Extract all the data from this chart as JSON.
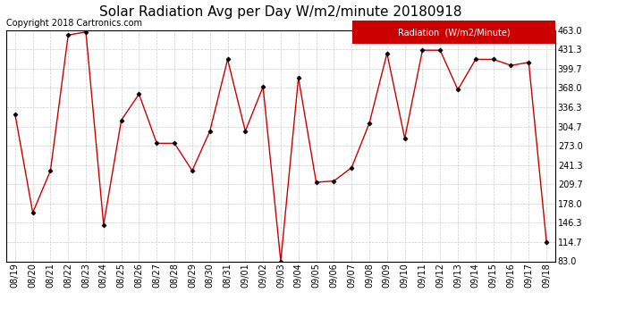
{
  "title": "Solar Radiation Avg per Day W/m2/minute 20180918",
  "copyright": "Copyright 2018 Cartronics.com",
  "legend_label": "Radiation  (W/m2/Minute)",
  "dates": [
    "08/19",
    "08/20",
    "08/21",
    "08/22",
    "08/23",
    "08/24",
    "08/25",
    "08/26",
    "08/27",
    "08/28",
    "08/29",
    "08/30",
    "08/31",
    "09/01",
    "09/02",
    "09/03",
    "09/04",
    "09/05",
    "09/06",
    "09/07",
    "09/08",
    "09/09",
    "09/10",
    "09/11",
    "09/12",
    "09/13",
    "09/14",
    "09/15",
    "09/16",
    "09/17",
    "09/18"
  ],
  "values": [
    325,
    163,
    232,
    455,
    460,
    143,
    315,
    358,
    277,
    277,
    232,
    297,
    415,
    297,
    370,
    83,
    385,
    213,
    215,
    237,
    310,
    425,
    285,
    430,
    430,
    365,
    415,
    415,
    405,
    410,
    115
  ],
  "line_color": "#cc0000",
  "marker": "D",
  "marker_size": 2.5,
  "marker_color": "#000000",
  "background_color": "#ffffff",
  "grid_color": "#cccccc",
  "ylim": [
    83.0,
    463.0
  ],
  "yticks": [
    83.0,
    114.7,
    146.3,
    178.0,
    209.7,
    241.3,
    273.0,
    304.7,
    336.3,
    368.0,
    399.7,
    431.3,
    463.0
  ],
  "legend_bg": "#cc0000",
  "legend_text_color": "#ffffff",
  "title_fontsize": 11,
  "copyright_fontsize": 7,
  "tick_fontsize": 7,
  "legend_fontsize": 7
}
